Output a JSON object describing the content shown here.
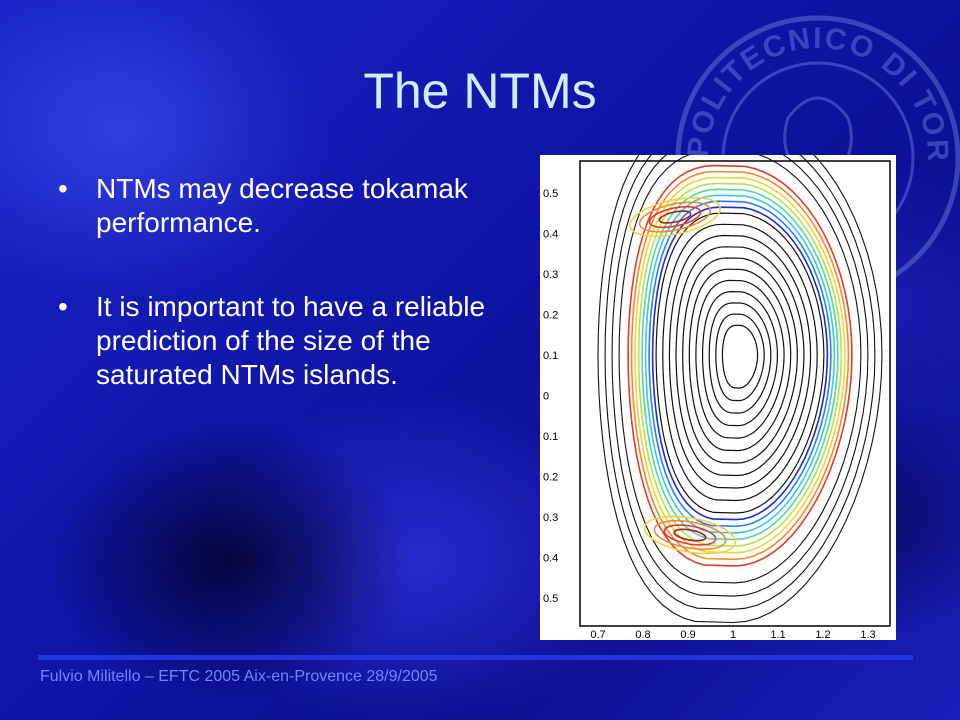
{
  "slide": {
    "title": "The NTMs",
    "bullets": [
      {
        "marker": "•",
        "text": "NTMs may decrease tokamak performance."
      },
      {
        "marker": "•",
        "text": "It is important to have a reliable prediction of the size of the saturated NTMs islands."
      }
    ],
    "footer": "Fulvio Militello – EFTC 2005 Aix-en-Provence 28/9/2005"
  },
  "seal": {
    "text": "POLITECNICO DI TORINO"
  },
  "figure": {
    "y_ticks": [
      "0.5",
      "0.4",
      "0.3",
      "0.2",
      "0.1",
      "0",
      "0.1",
      "0.2",
      "0.3",
      "0.4",
      "0.5"
    ],
    "x_ticks": [
      "0.7",
      "0.8",
      "0.9",
      "1",
      "1.1",
      "1.2",
      "1.3"
    ]
  },
  "colors": {
    "title": "#cfeeff",
    "footer": "#6f86ff",
    "footer_line": "#2234e0"
  }
}
